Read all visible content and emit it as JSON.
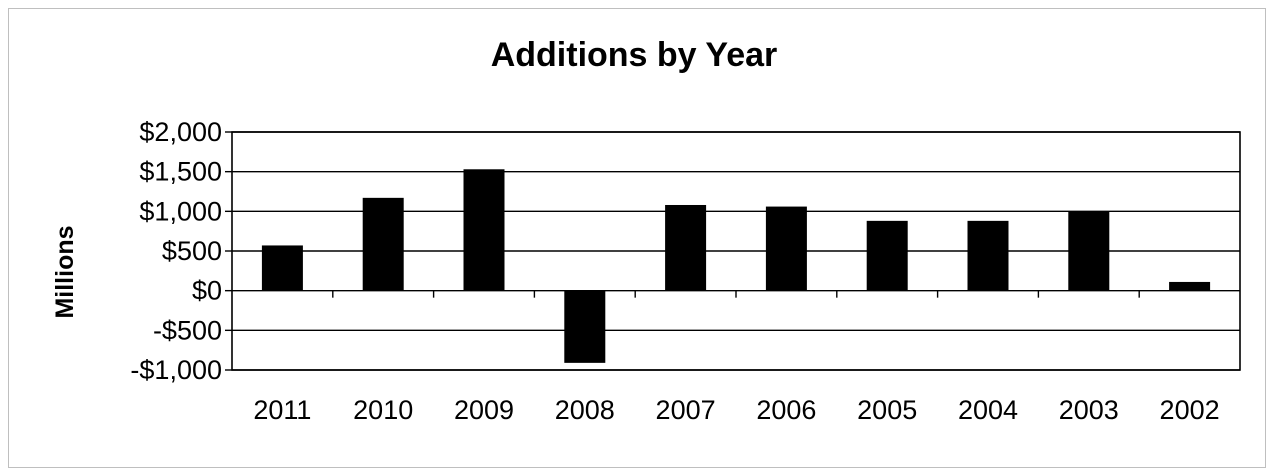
{
  "chart_data": {
    "type": "bar",
    "title": "Additions by Year",
    "xlabel": "",
    "ylabel": "Millions",
    "categories": [
      "2011",
      "2010",
      "2009",
      "2008",
      "2007",
      "2006",
      "2005",
      "2004",
      "2003",
      "2002"
    ],
    "values": [
      570,
      1170,
      1530,
      -910,
      1080,
      1060,
      880,
      880,
      1000,
      110
    ],
    "ylim": [
      -1000,
      2000
    ],
    "yticks": [
      2000,
      1500,
      1000,
      500,
      0,
      -500,
      -1000
    ],
    "ytick_labels": [
      "$2,000",
      "$1,500",
      "$1,000",
      "$500",
      "$0",
      "-$500",
      "-$1,000"
    ],
    "grid": true,
    "legend": "none",
    "colors": {
      "bar": "#000000",
      "grid": "#000000",
      "axis": "#000000"
    }
  }
}
